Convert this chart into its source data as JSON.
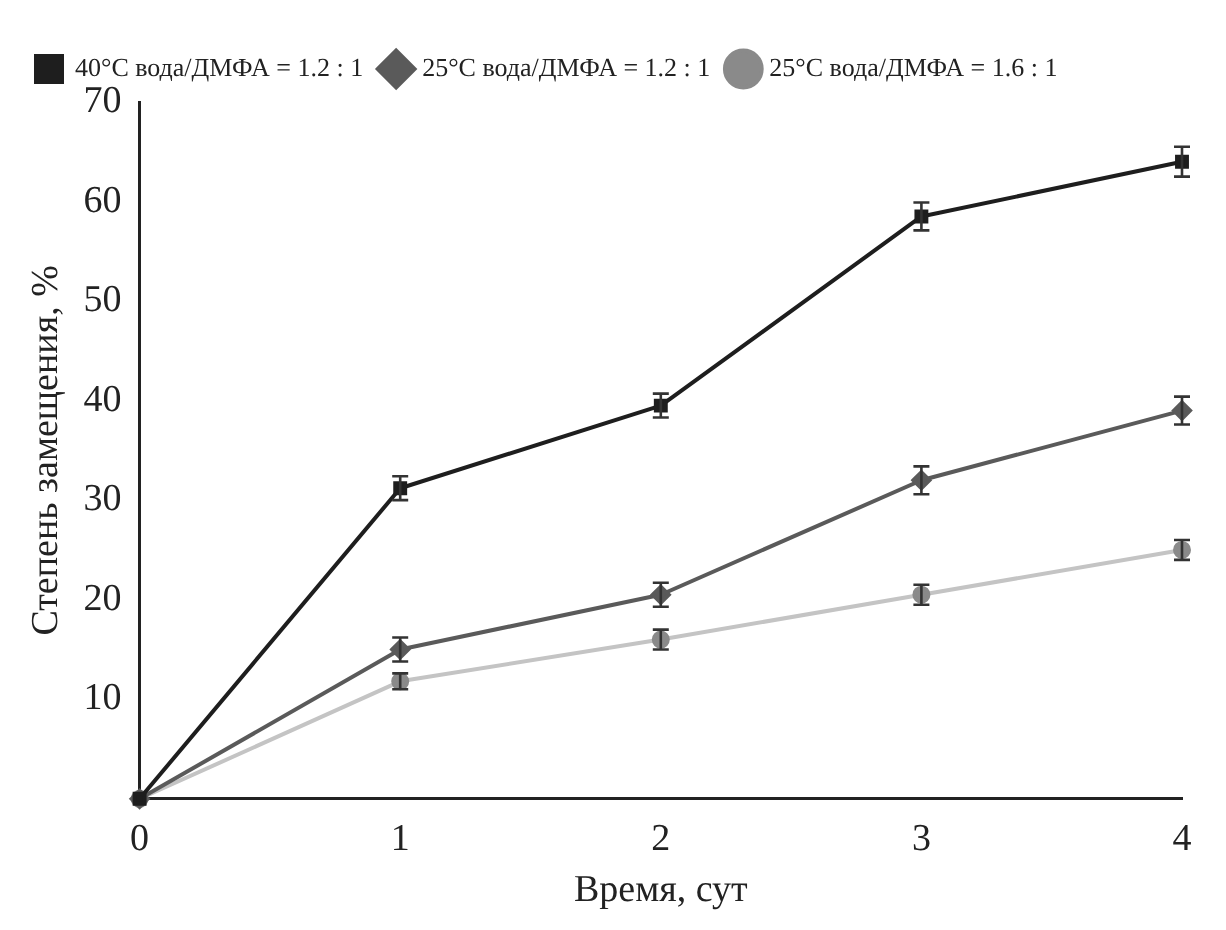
{
  "chart_data": {
    "type": "line",
    "xlabel": "Время, сут",
    "ylabel": "Степень замещения, %",
    "x": [
      0,
      1,
      2,
      3,
      4
    ],
    "xlim": [
      0,
      4
    ],
    "xticks": [
      0,
      1,
      2,
      3,
      4
    ],
    "ylim": [
      0,
      70
    ],
    "yticks": [
      10,
      20,
      30,
      40,
      50,
      60,
      70
    ],
    "grid": false,
    "legend": "top left",
    "line_style": "solid",
    "series": [
      {
        "name": "40°C вода/ДМФА = 1.2 : 1",
        "color": "#1e1e1e",
        "marker": "square",
        "values": [
          0,
          31.2,
          39.5,
          58.5,
          64
        ],
        "errors": [
          null,
          1.2,
          1.2,
          1.4,
          1.5
        ]
      },
      {
        "name": "25°C вода/ДМФА = 1.2 : 1",
        "color": "#5a5a5a",
        "marker": "diamond",
        "values": [
          0,
          15,
          20.5,
          32,
          39
        ],
        "errors": [
          null,
          1.2,
          1.2,
          1.4,
          1.4
        ]
      },
      {
        "name": "25°C вода/ДМФА = 1.6 : 1",
        "color": "#c4c4c4",
        "marker": "circle",
        "values": [
          0,
          11.8,
          16,
          20.5,
          25
        ],
        "errors": [
          null,
          0.8,
          1,
          1,
          1
        ]
      }
    ]
  }
}
